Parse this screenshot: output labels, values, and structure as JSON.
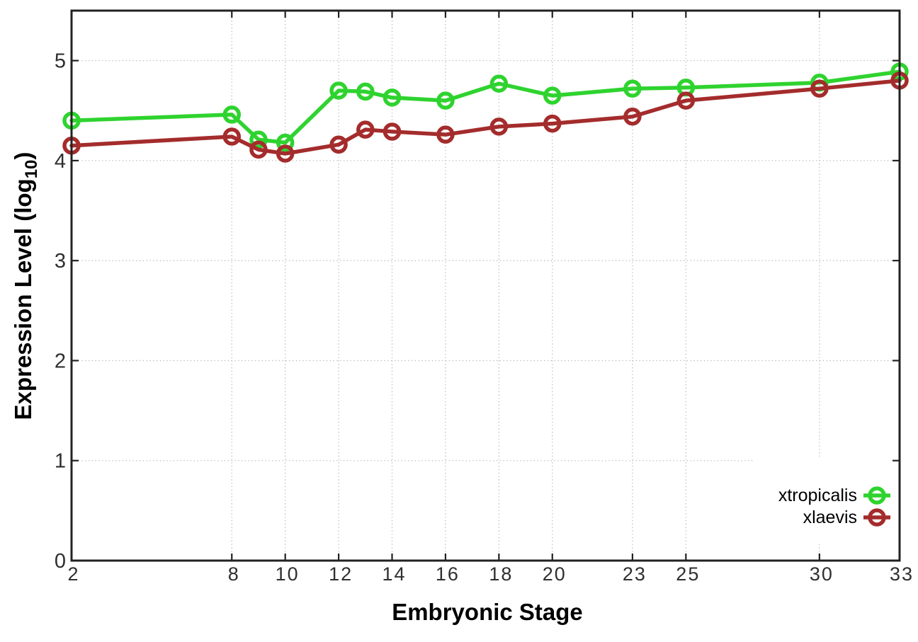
{
  "chart_data": {
    "type": "line",
    "title": "",
    "xlabel": "Embryonic Stage",
    "ylabel": "Expression Level (log10)",
    "ylabel_main": "Expression Level (log",
    "ylabel_sub": "10",
    "ylabel_end": ")",
    "x": [
      2,
      8,
      9,
      10,
      12,
      13,
      14,
      16,
      18,
      20,
      23,
      25,
      30,
      33
    ],
    "xticks": [
      2,
      8,
      10,
      12,
      14,
      16,
      18,
      20,
      23,
      25,
      30,
      33
    ],
    "yticks": [
      0,
      1,
      2,
      3,
      4,
      5
    ],
    "xlim": [
      2,
      33
    ],
    "ylim": [
      0,
      5.5
    ],
    "grid": true,
    "legend_position": "inside-right-lower",
    "series": [
      {
        "name": "xtropicalis",
        "color": "#2fd32f",
        "values": [
          4.4,
          4.46,
          4.21,
          4.18,
          4.7,
          4.69,
          4.63,
          4.6,
          4.77,
          4.65,
          4.72,
          4.73,
          4.78,
          4.89
        ]
      },
      {
        "name": "xlaevis",
        "color": "#a42c2c",
        "values": [
          4.15,
          4.24,
          4.11,
          4.07,
          4.16,
          4.31,
          4.29,
          4.26,
          4.34,
          4.37,
          4.44,
          4.6,
          4.72,
          4.8
        ]
      }
    ],
    "frame_color": "#222222",
    "grid_color": "#b5b5b5",
    "tick_label_color": "#2f2f2f"
  }
}
